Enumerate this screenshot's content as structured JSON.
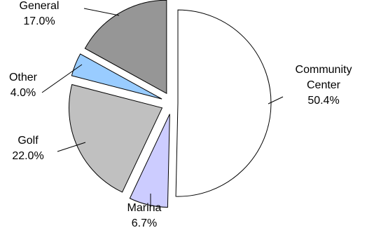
{
  "chart_data": {
    "type": "pie",
    "title": "",
    "slices": [
      {
        "label": "Community Center",
        "label_lines": [
          "Community",
          "Center"
        ],
        "value": 50.4,
        "value_label": "50.4%",
        "color": "#ffffff"
      },
      {
        "label": "Marina",
        "label_lines": [
          "Marina"
        ],
        "value": 6.7,
        "value_label": "6.7%",
        "color": "#ccccff"
      },
      {
        "label": "Golf",
        "label_lines": [
          "Golf"
        ],
        "value": 22.0,
        "value_label": "22.0%",
        "color": "#c0c0c0"
      },
      {
        "label": "Other",
        "label_lines": [
          "Other"
        ],
        "value": 4.0,
        "value_label": "4.0%",
        "color": "#99ccff"
      },
      {
        "label": "General",
        "label_lines": [
          "General"
        ],
        "value": 17.0,
        "value_label": "17.0%",
        "color": "#969696"
      }
    ],
    "start_angle_deg": 0,
    "direction": "clockwise",
    "exploded": true,
    "legend": "none"
  }
}
